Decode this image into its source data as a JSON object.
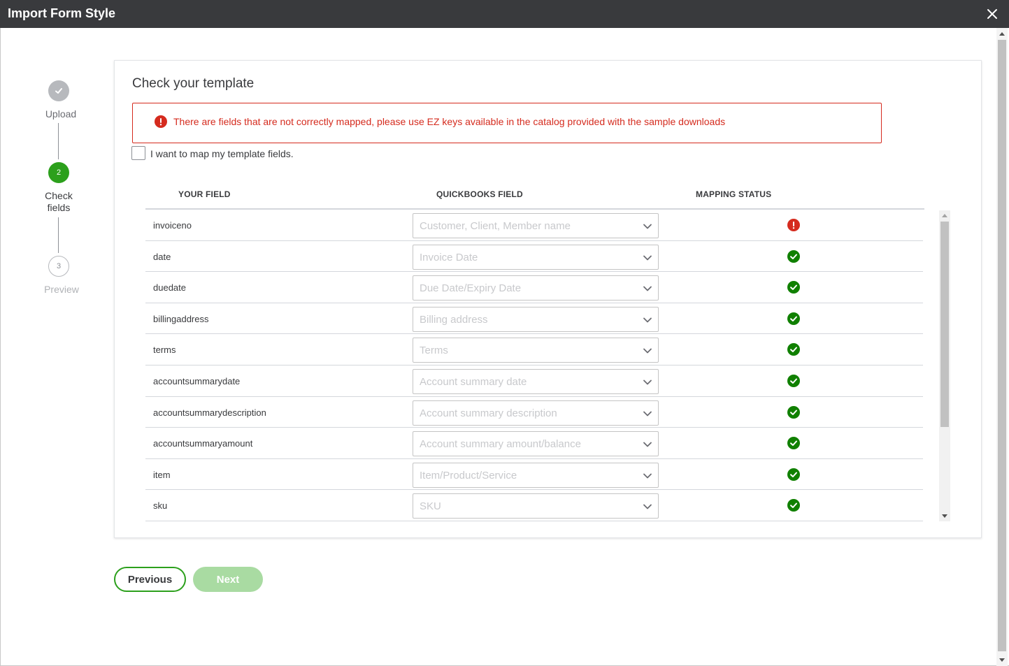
{
  "window": {
    "title": "Import Form Style"
  },
  "stepper": {
    "steps": [
      {
        "number": "",
        "label": "Upload",
        "state": "done"
      },
      {
        "number": "2",
        "label": "Check fields",
        "state": "active"
      },
      {
        "number": "3",
        "label": "Preview",
        "state": "todo"
      }
    ]
  },
  "card": {
    "title": "Check your template",
    "alert": "There are fields that are not correctly mapped, please use EZ keys available in the catalog provided with the sample downloads",
    "map_checkbox_label": "I want to map my template fields.",
    "map_checkbox_checked": false
  },
  "table": {
    "headers": {
      "your_field": "YOUR FIELD",
      "quickbooks_field": "QUICKBOOKS FIELD",
      "mapping_status": "MAPPING STATUS"
    },
    "rows": [
      {
        "field": "invoiceno",
        "qb_field": "Customer, Client, Member name",
        "status": "error"
      },
      {
        "field": "date",
        "qb_field": "Invoice Date",
        "status": "ok"
      },
      {
        "field": "duedate",
        "qb_field": "Due Date/Expiry Date",
        "status": "ok"
      },
      {
        "field": "billingaddress",
        "qb_field": "Billing address",
        "status": "ok"
      },
      {
        "field": "terms",
        "qb_field": "Terms",
        "status": "ok"
      },
      {
        "field": "accountsummarydate",
        "qb_field": "Account summary date",
        "status": "ok"
      },
      {
        "field": "accountsummarydescription",
        "qb_field": "Account summary description",
        "status": "ok"
      },
      {
        "field": "accountsummaryamount",
        "qb_field": "Account summary amount/balance",
        "status": "ok"
      },
      {
        "field": "item",
        "qb_field": "Item/Product/Service",
        "status": "ok"
      },
      {
        "field": "sku",
        "qb_field": "SKU",
        "status": "ok"
      }
    ]
  },
  "buttons": {
    "previous": "Previous",
    "next": "Next",
    "next_enabled": false
  },
  "colors": {
    "titlebar": "#393a3d",
    "accent_green": "#2ca01c",
    "error_red": "#d52b1e",
    "next_disabled": "#a9dba2"
  }
}
